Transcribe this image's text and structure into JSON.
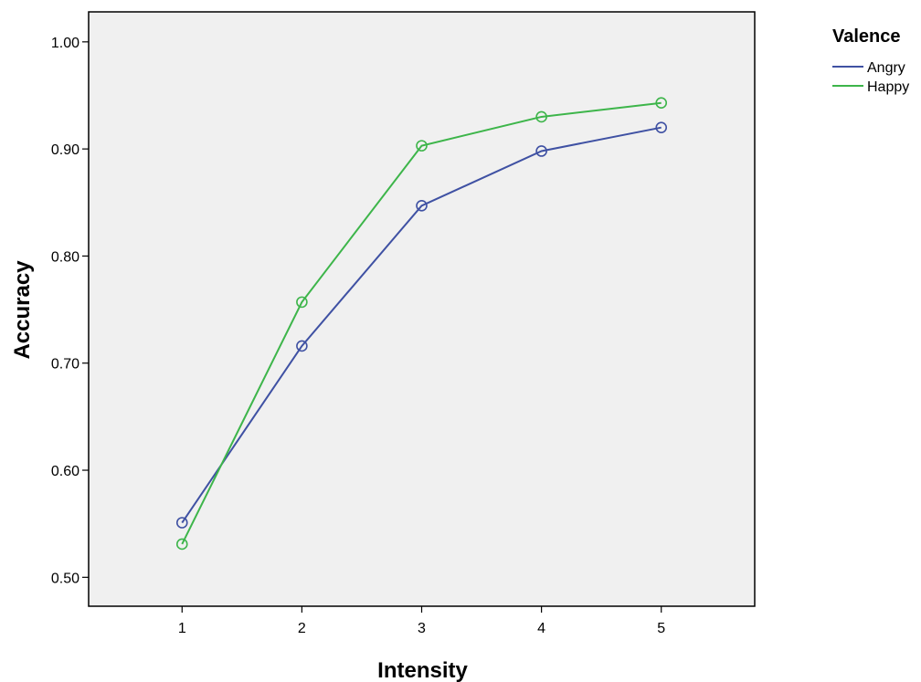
{
  "chart_data": {
    "type": "line",
    "xlabel": "Intensity",
    "ylabel": "Accuracy",
    "x": [
      1,
      2,
      3,
      4,
      5
    ],
    "x_ticks": [
      "1",
      "2",
      "3",
      "4",
      "5"
    ],
    "xlim": [
      0.22,
      5.78
    ],
    "ylim": [
      0.473,
      1.028
    ],
    "y_ticks": [
      "0.50",
      "0.60",
      "0.70",
      "0.80",
      "0.90",
      "1.00"
    ],
    "y_tick_values": [
      0.5,
      0.6,
      0.7,
      0.8,
      0.9,
      1.0
    ],
    "grid": false,
    "plot_background": "#f0f0f0",
    "legend": {
      "title": "Valence",
      "position": "right"
    },
    "series": [
      {
        "name": "Angry",
        "color": "#3f51a3",
        "values": [
          0.551,
          0.716,
          0.847,
          0.898,
          0.92
        ]
      },
      {
        "name": "Happy",
        "color": "#3db54a",
        "values": [
          0.531,
          0.757,
          0.903,
          0.93,
          0.943
        ]
      }
    ]
  }
}
